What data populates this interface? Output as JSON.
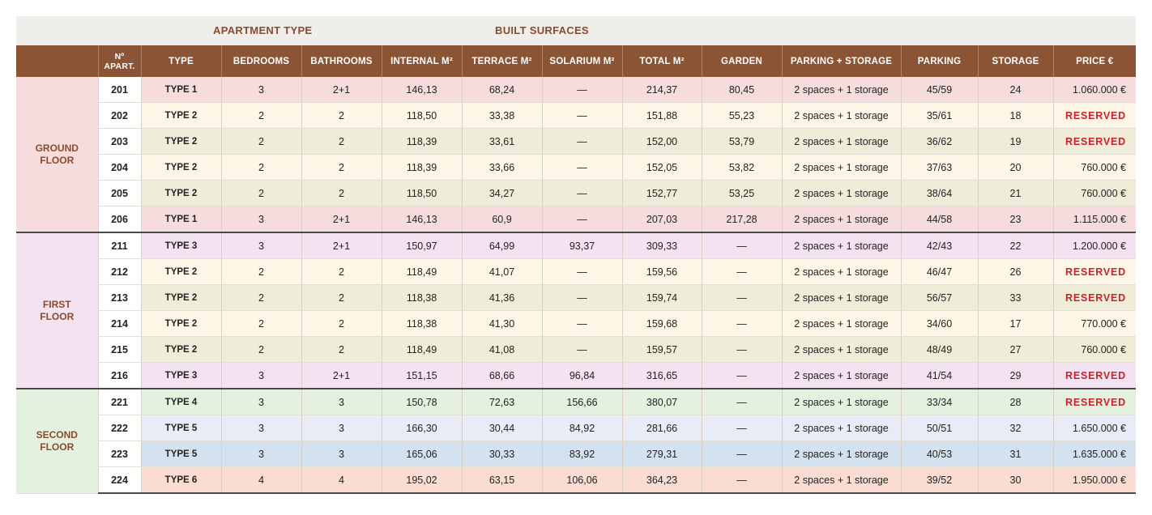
{
  "group_headers": {
    "apartment_type": "APARTMENT TYPE",
    "built_surfaces": "BUILT SURFACES"
  },
  "columns": [
    "Nº APART.",
    "TYPE",
    "BEDROOMS",
    "BATHROOMS",
    "INTERNAL M²",
    "TERRACE M²",
    "SOLARIUM M²",
    "TOTAL M²",
    "GARDEN",
    "PARKING + STORAGE",
    "PARKING",
    "STORAGE",
    "PRICE €"
  ],
  "floors": [
    {
      "label": "GROUND FLOOR",
      "rows": [
        {
          "color": "c1",
          "num": "201",
          "type": "TYPE 1",
          "bedrooms": "3",
          "bathrooms": "2+1",
          "internal": "146,13",
          "terrace": "68,24",
          "solarium": "—",
          "total": "214,37",
          "garden": "80,45",
          "parking_storage": "2 spaces + 1 storage",
          "parking": "45/59",
          "storage": "24",
          "price": "1.060.000 €"
        },
        {
          "color": "c2",
          "num": "202",
          "type": "TYPE 2",
          "bedrooms": "2",
          "bathrooms": "2",
          "internal": "118,50",
          "terrace": "33,38",
          "solarium": "—",
          "total": "151,88",
          "garden": "55,23",
          "parking_storage": "2 spaces + 1 storage",
          "parking": "35/61",
          "storage": "18",
          "price": "RESERVED"
        },
        {
          "color": "c3",
          "num": "203",
          "type": "TYPE 2",
          "bedrooms": "2",
          "bathrooms": "2",
          "internal": "118,39",
          "terrace": "33,61",
          "solarium": "—",
          "total": "152,00",
          "garden": "53,79",
          "parking_storage": "2 spaces + 1 storage",
          "parking": "36/62",
          "storage": "19",
          "price": "RESERVED"
        },
        {
          "color": "c2",
          "num": "204",
          "type": "TYPE 2",
          "bedrooms": "2",
          "bathrooms": "2",
          "internal": "118,39",
          "terrace": "33,66",
          "solarium": "—",
          "total": "152,05",
          "garden": "53,82",
          "parking_storage": "2 spaces + 1 storage",
          "parking": "37/63",
          "storage": "20",
          "price": "760.000 €"
        },
        {
          "color": "c3",
          "num": "205",
          "type": "TYPE 2",
          "bedrooms": "2",
          "bathrooms": "2",
          "internal": "118,50",
          "terrace": "34,27",
          "solarium": "—",
          "total": "152,77",
          "garden": "53,25",
          "parking_storage": "2 spaces + 1 storage",
          "parking": "38/64",
          "storage": "21",
          "price": "760.000 €"
        },
        {
          "color": "c1",
          "num": "206",
          "type": "TYPE 1",
          "bedrooms": "3",
          "bathrooms": "2+1",
          "internal": "146,13",
          "terrace": "60,9",
          "solarium": "—",
          "total": "207,03",
          "garden": "217,28",
          "parking_storage": "2 spaces + 1 storage",
          "parking": "44/58",
          "storage": "23",
          "price": "1.115.000 €"
        }
      ]
    },
    {
      "label": "FIRST FLOOR",
      "rows": [
        {
          "color": "c4",
          "num": "211",
          "type": "TYPE 3",
          "bedrooms": "3",
          "bathrooms": "2+1",
          "internal": "150,97",
          "terrace": "64,99",
          "solarium": "93,37",
          "total": "309,33",
          "garden": "—",
          "parking_storage": "2 spaces + 1 storage",
          "parking": "42/43",
          "storage": "22",
          "price": "1.200.000 €"
        },
        {
          "color": "c2",
          "num": "212",
          "type": "TYPE 2",
          "bedrooms": "2",
          "bathrooms": "2",
          "internal": "118,49",
          "terrace": "41,07",
          "solarium": "—",
          "total": "159,56",
          "garden": "—",
          "parking_storage": "2 spaces + 1 storage",
          "parking": "46/47",
          "storage": "26",
          "price": "RESERVED"
        },
        {
          "color": "c3",
          "num": "213",
          "type": "TYPE 2",
          "bedrooms": "2",
          "bathrooms": "2",
          "internal": "118,38",
          "terrace": "41,36",
          "solarium": "—",
          "total": "159,74",
          "garden": "—",
          "parking_storage": "2 spaces + 1 storage",
          "parking": "56/57",
          "storage": "33",
          "price": "RESERVED"
        },
        {
          "color": "c2",
          "num": "214",
          "type": "TYPE 2",
          "bedrooms": "2",
          "bathrooms": "2",
          "internal": "118,38",
          "terrace": "41,30",
          "solarium": "—",
          "total": "159,68",
          "garden": "—",
          "parking_storage": "2 spaces + 1 storage",
          "parking": "34/60",
          "storage": "17",
          "price": "770.000 €"
        },
        {
          "color": "c3",
          "num": "215",
          "type": "TYPE 2",
          "bedrooms": "2",
          "bathrooms": "2",
          "internal": "118,49",
          "terrace": "41,08",
          "solarium": "—",
          "total": "159,57",
          "garden": "—",
          "parking_storage": "2 spaces + 1 storage",
          "parking": "48/49",
          "storage": "27",
          "price": "760.000 €"
        },
        {
          "color": "c4",
          "num": "216",
          "type": "TYPE 3",
          "bedrooms": "3",
          "bathrooms": "2+1",
          "internal": "151,15",
          "terrace": "68,66",
          "solarium": "96,84",
          "total": "316,65",
          "garden": "—",
          "parking_storage": "2 spaces + 1 storage",
          "parking": "41/54",
          "storage": "29",
          "price": "RESERVED"
        }
      ]
    },
    {
      "label": "SECOND FLOOR",
      "rows": [
        {
          "color": "c5",
          "num": "221",
          "type": "TYPE 4",
          "bedrooms": "3",
          "bathrooms": "3",
          "internal": "150,78",
          "terrace": "72,63",
          "solarium": "156,66",
          "total": "380,07",
          "garden": "—",
          "parking_storage": "2 spaces + 1 storage",
          "parking": "33/34",
          "storage": "28",
          "price": "RESERVED"
        },
        {
          "color": "c6",
          "num": "222",
          "type": "TYPE 5",
          "bedrooms": "3",
          "bathrooms": "3",
          "internal": "166,30",
          "terrace": "30,44",
          "solarium": "84,92",
          "total": "281,66",
          "garden": "—",
          "parking_storage": "2 spaces + 1 storage",
          "parking": "50/51",
          "storage": "32",
          "price": "1.650.000 €"
        },
        {
          "color": "c7",
          "num": "223",
          "type": "TYPE 5",
          "bedrooms": "3",
          "bathrooms": "3",
          "internal": "165,06",
          "terrace": "30,33",
          "solarium": "83,92",
          "total": "279,31",
          "garden": "—",
          "parking_storage": "2 spaces + 1 storage",
          "parking": "40/53",
          "storage": "31",
          "price": "1.635.000 €"
        },
        {
          "color": "c8",
          "num": "224",
          "type": "TYPE 6",
          "bedrooms": "4",
          "bathrooms": "4",
          "internal": "195,02",
          "terrace": "63,15",
          "solarium": "106,06",
          "total": "364,23",
          "garden": "—",
          "parking_storage": "2 spaces + 1 storage",
          "parking": "39/52",
          "storage": "30",
          "price": "1.950.000 €"
        }
      ]
    }
  ]
}
